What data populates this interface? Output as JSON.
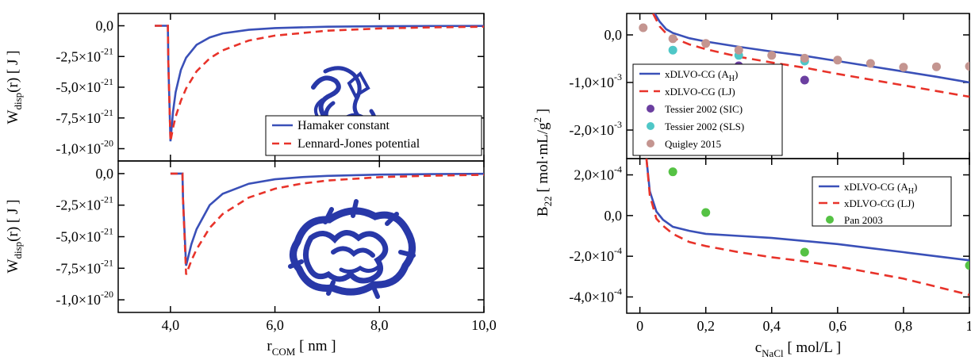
{
  "chart_data": [
    {
      "id": "wdisp_top",
      "type": "line",
      "ylabel_main": "W",
      "ylabel_sub": "disp",
      "ylabel_rest": "(r) [ J ]",
      "xlim": [
        3.0,
        10.0
      ],
      "ylim": [
        -1.1e-20,
        1e-21
      ],
      "yticks": [
        {
          "v": 0,
          "m": "0,0",
          "e": ""
        },
        {
          "v": -2.5e-21,
          "m": "-2,5×10",
          "e": "-21"
        },
        {
          "v": -5e-21,
          "m": "-5,0×10",
          "e": "-21"
        },
        {
          "v": -7.5e-21,
          "m": "-7,5×10",
          "e": "-21"
        },
        {
          "v": -1e-20,
          "m": "-1,0×10",
          "e": "-20"
        }
      ],
      "series": [
        {
          "name": "Hamaker constant",
          "color": "#3a50b8",
          "dash": "",
          "x": [
            3.7,
            3.95,
            3.96,
            4.0,
            4.05,
            4.1,
            4.2,
            4.3,
            4.5,
            4.75,
            5.0,
            5.5,
            6.0,
            7.0,
            8.0,
            9.0,
            10.0
          ],
          "y": [
            0,
            0,
            -3e-21,
            -9.4e-21,
            -7e-21,
            -5.4e-21,
            -3.6e-21,
            -2.6e-21,
            -1.55e-21,
            -9.5e-22,
            -6.2e-22,
            -3.3e-22,
            -1.9e-22,
            -8e-23,
            -4e-23,
            -2e-23,
            -1e-23
          ]
        },
        {
          "name": "Lennard-Jones potential",
          "color": "#e8332a",
          "dash": "9,6",
          "x": [
            3.7,
            3.95,
            3.96,
            4.0,
            4.05,
            4.1,
            4.2,
            4.3,
            4.5,
            4.75,
            5.0,
            5.5,
            6.0,
            7.0,
            8.0,
            9.0,
            10.0
          ],
          "y": [
            0,
            0,
            -3e-21,
            -9.4e-21,
            -8.3e-21,
            -7.4e-21,
            -6.1e-21,
            -5.1e-21,
            -3.7e-21,
            -2.65e-21,
            -2e-21,
            -1.2e-21,
            -8e-22,
            -4e-22,
            -2.2e-22,
            -1.3e-22,
            -8e-23
          ]
        }
      ]
    },
    {
      "id": "wdisp_bottom",
      "type": "line",
      "ylabel_main": "W",
      "ylabel_sub": "disp",
      "ylabel_rest": "(r) [ J ]",
      "xlabel_main": "r",
      "xlabel_sub": "COM",
      "xlabel_rest": " [ nm ]",
      "xlim": [
        3.0,
        10.0
      ],
      "ylim": [
        -1.1e-20,
        1e-21
      ],
      "xticks": [
        {
          "v": 4,
          "t": "4,0"
        },
        {
          "v": 6,
          "t": "6,0"
        },
        {
          "v": 8,
          "t": "8,0"
        },
        {
          "v": 10,
          "t": "10,0"
        }
      ],
      "yticks": [
        {
          "v": 0,
          "m": "0,0",
          "e": ""
        },
        {
          "v": -2.5e-21,
          "m": "-2,5×10",
          "e": "-21"
        },
        {
          "v": -5e-21,
          "m": "-5,0×10",
          "e": "-21"
        },
        {
          "v": -7.5e-21,
          "m": "-7,5×10",
          "e": "-21"
        },
        {
          "v": -1e-20,
          "m": "-1,0×10",
          "e": "-20"
        }
      ],
      "series": [
        {
          "name": "Hamaker constant",
          "color": "#3a50b8",
          "dash": "",
          "x": [
            4.0,
            4.23,
            4.24,
            4.3,
            4.4,
            4.5,
            4.75,
            5.0,
            5.5,
            6.0,
            6.5,
            7.0,
            8.0,
            9.0,
            10.0
          ],
          "y": [
            0,
            0,
            -2e-21,
            -7.3e-21,
            -5.6e-21,
            -4.4e-21,
            -2.5e-21,
            -1.6e-21,
            -8e-22,
            -4.5e-22,
            -2.8e-22,
            -1.8e-22,
            -8e-23,
            -4e-23,
            -2e-23
          ]
        },
        {
          "name": "Lennard-Jones potential",
          "color": "#e8332a",
          "dash": "9,6",
          "x": [
            4.0,
            4.23,
            4.24,
            4.3,
            4.4,
            4.5,
            4.75,
            5.0,
            5.5,
            6.0,
            6.5,
            7.0,
            8.0,
            9.0,
            10.0
          ],
          "y": [
            0,
            0,
            -2e-21,
            -8e-21,
            -6.9e-21,
            -6e-21,
            -4.3e-21,
            -3.2e-21,
            -1.9e-21,
            -1.2e-21,
            -8e-22,
            -5.5e-22,
            -2.8e-22,
            -1.6e-22,
            -1e-22
          ]
        }
      ]
    },
    {
      "id": "b22_top",
      "type": "line",
      "ylabel_main": "B",
      "ylabel_sub": "22",
      "ylabel_rest": " [ mol·mL/g",
      "ylabel_sup": "2",
      "ylabel_end": " ]",
      "xlim": [
        -0.04,
        1.0
      ],
      "ylim": [
        -0.0026,
        0.00045
      ],
      "yticks": [
        {
          "v": 0,
          "m": "0,0",
          "e": ""
        },
        {
          "v": -0.001,
          "m": "-1,0×10",
          "e": "-3"
        },
        {
          "v": -0.002,
          "m": "-2,0×10",
          "e": "-3"
        }
      ],
      "series": [
        {
          "name": "xDLVO-CG (A",
          "name_sub": "H",
          "name_end": ")",
          "kind": "line",
          "color": "#3a50b8",
          "dash": "",
          "x": [
            0.045,
            0.06,
            0.08,
            0.1,
            0.15,
            0.2,
            0.3,
            0.4,
            0.5,
            0.6,
            0.7,
            0.8,
            0.9,
            1.0
          ],
          "y": [
            0.00045,
            0.00028,
            0.00012,
            4e-05,
            -7e-05,
            -0.00014,
            -0.00025,
            -0.00035,
            -0.00044,
            -0.00055,
            -0.00066,
            -0.00077,
            -0.00088,
            -0.001
          ]
        },
        {
          "name": "xDLVO-CG (LJ)",
          "kind": "line",
          "color": "#e8332a",
          "dash": "11,7",
          "x": [
            0.04,
            0.06,
            0.08,
            0.1,
            0.15,
            0.2,
            0.3,
            0.4,
            0.5,
            0.6,
            0.7,
            0.8,
            0.9,
            1.0
          ],
          "y": [
            0.00045,
            0.00018,
            3e-05,
            -6e-05,
            -0.0002,
            -0.0003,
            -0.00046,
            -0.00058,
            -0.00069,
            -0.00082,
            -0.00094,
            -0.00106,
            -0.00118,
            -0.0013
          ]
        },
        {
          "name": "Tessier 2002 (SIC)",
          "kind": "scatter",
          "color": "#6b3fa0",
          "x": [
            0.3,
            0.5
          ],
          "y": [
            -0.00065,
            -0.00095
          ]
        },
        {
          "name": "Tessier 2002 (SLS)",
          "kind": "scatter",
          "color": "#4fc7c7",
          "x": [
            0.1,
            0.3,
            0.5
          ],
          "y": [
            -0.00032,
            -0.00043,
            -0.00055
          ]
        },
        {
          "name": "Quigley 2015",
          "kind": "scatter",
          "color": "#c49590",
          "x": [
            0.01,
            0.1,
            0.2,
            0.3,
            0.4,
            0.5,
            0.6,
            0.7,
            0.8,
            0.9,
            1.0
          ],
          "y": [
            0.00015,
            -8e-05,
            -0.00018,
            -0.00032,
            -0.00043,
            -0.00049,
            -0.00053,
            -0.0006,
            -0.00068,
            -0.00067,
            -0.00066
          ]
        }
      ]
    },
    {
      "id": "b22_bottom",
      "type": "line",
      "xlabel_main": "c",
      "xlabel_sub": "NaCl",
      "xlabel_rest": " [ mol/L ]",
      "xlim": [
        -0.04,
        1.0
      ],
      "ylim": [
        -0.00048,
        0.00028
      ],
      "xticks": [
        {
          "v": 0,
          "t": "0"
        },
        {
          "v": 0.2,
          "t": "0,2"
        },
        {
          "v": 0.4,
          "t": "0,4"
        },
        {
          "v": 0.6,
          "t": "0,6"
        },
        {
          "v": 0.8,
          "t": "0,8"
        },
        {
          "v": 1.0,
          "t": "1"
        }
      ],
      "yticks": [
        {
          "v": 0.0002,
          "m": "2,0×10",
          "e": "-4"
        },
        {
          "v": 0,
          "m": "0,0",
          "e": ""
        },
        {
          "v": -0.0002,
          "m": "-2,0×10",
          "e": "-4"
        },
        {
          "v": -0.0004,
          "m": "-4,0×10",
          "e": "-4"
        }
      ],
      "series": [
        {
          "name": "xDLVO-CG (A",
          "name_sub": "H",
          "name_end": ")",
          "kind": "line",
          "color": "#3a50b8",
          "dash": "",
          "x": [
            0.02,
            0.03,
            0.05,
            0.07,
            0.1,
            0.15,
            0.2,
            0.3,
            0.4,
            0.5,
            0.6,
            0.7,
            0.8,
            0.9,
            1.0
          ],
          "y": [
            0.00028,
            0.00012,
            2e-05,
            -2e-05,
            -5.5e-05,
            -7.5e-05,
            -9e-05,
            -0.0001,
            -0.00011,
            -0.000125,
            -0.00014,
            -0.00016,
            -0.00018,
            -0.0002,
            -0.00022
          ]
        },
        {
          "name": "xDLVO-CG (LJ)",
          "kind": "line",
          "color": "#e8332a",
          "dash": "11,7",
          "x": [
            0.02,
            0.03,
            0.05,
            0.07,
            0.1,
            0.15,
            0.2,
            0.3,
            0.4,
            0.5,
            0.6,
            0.7,
            0.8,
            0.9,
            1.0
          ],
          "y": [
            0.00028,
            0.0001,
            -1.5e-05,
            -5e-05,
            -9e-05,
            -0.00013,
            -0.00015,
            -0.00018,
            -0.000205,
            -0.000225,
            -0.00025,
            -0.00028,
            -0.00031,
            -0.00035,
            -0.00039
          ]
        },
        {
          "name": "Pan 2003",
          "kind": "scatter",
          "color": "#55c244",
          "x": [
            0.1,
            0.2,
            0.5,
            1.0
          ],
          "y": [
            0.000215,
            1.5e-05,
            -0.00018,
            -0.000245
          ]
        }
      ]
    }
  ]
}
